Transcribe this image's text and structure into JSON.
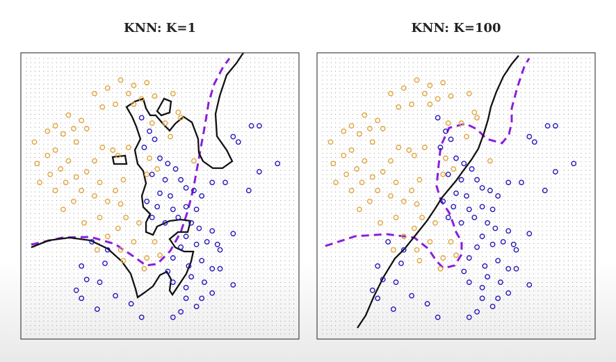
{
  "colors": {
    "orange": "#e0a43c",
    "blue": "#2517b8",
    "bayes": "#8a1fd8",
    "boundary": "#111111",
    "grid_dot": "#8a8a8a",
    "frame": "#444444"
  },
  "chart_data": [
    {
      "type": "scatter",
      "title": "KNN: K=1",
      "xlim": [
        0,
        1
      ],
      "ylim": [
        0,
        1
      ],
      "grid": "dotted",
      "series": [
        {
          "class": "orange",
          "points": [
            [
              0.35,
              0.93
            ],
            [
              0.4,
              0.91
            ],
            [
              0.45,
              0.92
            ],
            [
              0.3,
              0.9
            ],
            [
              0.25,
              0.88
            ],
            [
              0.38,
              0.88
            ],
            [
              0.43,
              0.86
            ],
            [
              0.48,
              0.87
            ],
            [
              0.55,
              0.88
            ],
            [
              0.4,
              0.84
            ],
            [
              0.33,
              0.84
            ],
            [
              0.28,
              0.83
            ],
            [
              0.15,
              0.8
            ],
            [
              0.2,
              0.78
            ],
            [
              0.1,
              0.76
            ],
            [
              0.17,
              0.75
            ],
            [
              0.22,
              0.75
            ],
            [
              0.07,
              0.74
            ],
            [
              0.13,
              0.73
            ],
            [
              0.02,
              0.7
            ],
            [
              0.18,
              0.7
            ],
            [
              0.28,
              0.68
            ],
            [
              0.32,
              0.67
            ],
            [
              0.38,
              0.68
            ],
            [
              0.34,
              0.65
            ],
            [
              0.1,
              0.67
            ],
            [
              0.07,
              0.65
            ],
            [
              0.15,
              0.63
            ],
            [
              0.25,
              0.63
            ],
            [
              0.12,
              0.6
            ],
            [
              0.08,
              0.58
            ],
            [
              0.03,
              0.62
            ],
            [
              0.18,
              0.57
            ],
            [
              0.22,
              0.59
            ],
            [
              0.27,
              0.55
            ],
            [
              0.14,
              0.55
            ],
            [
              0.04,
              0.55
            ],
            [
              0.2,
              0.52
            ],
            [
              0.1,
              0.52
            ],
            [
              0.25,
              0.5
            ],
            [
              0.3,
              0.48
            ],
            [
              0.17,
              0.48
            ],
            [
              0.13,
              0.45
            ],
            [
              0.36,
              0.56
            ],
            [
              0.33,
              0.52
            ],
            [
              0.35,
              0.47
            ],
            [
              0.37,
              0.42
            ],
            [
              0.27,
              0.42
            ],
            [
              0.21,
              0.4
            ],
            [
              0.34,
              0.38
            ],
            [
              0.42,
              0.4
            ],
            [
              0.3,
              0.35
            ],
            [
              0.26,
              0.3
            ],
            [
              0.35,
              0.3
            ],
            [
              0.4,
              0.33
            ],
            [
              0.36,
              0.26
            ],
            [
              0.45,
              0.27
            ],
            [
              0.47,
              0.77
            ],
            [
              0.54,
              0.72
            ],
            [
              0.52,
              0.77
            ],
            [
              0.57,
              0.81
            ],
            [
              0.63,
              0.63
            ],
            [
              0.49,
              0.6
            ],
            [
              0.58,
              0.79
            ],
            [
              0.48,
              0.33
            ],
            [
              0.44,
              0.23
            ],
            [
              0.5,
              0.28
            ],
            [
              0.46,
              0.64
            ],
            [
              0.45,
              0.58
            ]
          ]
        },
        {
          "class": "blue",
          "points": [
            [
              0.43,
              0.79
            ],
            [
              0.46,
              0.74
            ],
            [
              0.48,
              0.71
            ],
            [
              0.44,
              0.68
            ],
            [
              0.5,
              0.64
            ],
            [
              0.53,
              0.62
            ],
            [
              0.56,
              0.6
            ],
            [
              0.47,
              0.58
            ],
            [
              0.52,
              0.56
            ],
            [
              0.58,
              0.56
            ],
            [
              0.6,
              0.53
            ],
            [
              0.5,
              0.51
            ],
            [
              0.54,
              0.5
            ],
            [
              0.63,
              0.52
            ],
            [
              0.66,
              0.5
            ],
            [
              0.45,
              0.48
            ],
            [
              0.49,
              0.46
            ],
            [
              0.55,
              0.45
            ],
            [
              0.6,
              0.46
            ],
            [
              0.64,
              0.45
            ],
            [
              0.57,
              0.42
            ],
            [
              0.47,
              0.42
            ],
            [
              0.52,
              0.4
            ],
            [
              0.62,
              0.4
            ],
            [
              0.65,
              0.38
            ],
            [
              0.7,
              0.37
            ],
            [
              0.6,
              0.35
            ],
            [
              0.68,
              0.33
            ],
            [
              0.64,
              0.32
            ],
            [
              0.72,
              0.32
            ],
            [
              0.58,
              0.31
            ],
            [
              0.55,
              0.27
            ],
            [
              0.61,
              0.24
            ],
            [
              0.66,
              0.26
            ],
            [
              0.7,
              0.23
            ],
            [
              0.62,
              0.2
            ],
            [
              0.67,
              0.18
            ],
            [
              0.7,
              0.14
            ],
            [
              0.6,
              0.16
            ],
            [
              0.55,
              0.18
            ],
            [
              0.53,
              0.22
            ],
            [
              0.6,
              0.12
            ],
            [
              0.64,
              0.09
            ],
            [
              0.58,
              0.07
            ],
            [
              0.73,
              0.3
            ],
            [
              0.78,
              0.36
            ],
            [
              0.84,
              0.52
            ],
            [
              0.88,
              0.59
            ],
            [
              0.95,
              0.62
            ],
            [
              0.8,
              0.7
            ],
            [
              0.78,
              0.72
            ],
            [
              0.88,
              0.76
            ],
            [
              0.85,
              0.76
            ],
            [
              0.75,
              0.55
            ],
            [
              0.7,
              0.55
            ],
            [
              0.73,
              0.23
            ],
            [
              0.78,
              0.17
            ],
            [
              0.2,
              0.24
            ],
            [
              0.22,
              0.19
            ],
            [
              0.27,
              0.18
            ],
            [
              0.18,
              0.15
            ],
            [
              0.2,
              0.12
            ],
            [
              0.26,
              0.08
            ],
            [
              0.33,
              0.13
            ],
            [
              0.29,
              0.25
            ],
            [
              0.3,
              0.3
            ],
            [
              0.24,
              0.33
            ],
            [
              0.39,
              0.1
            ],
            [
              0.43,
              0.05
            ],
            [
              0.55,
              0.05
            ],
            [
              0.66,
              0.12
            ]
          ]
        }
      ]
    },
    {
      "type": "scatter",
      "title": "KNN: K=100",
      "xlim": [
        0,
        1
      ],
      "ylim": [
        0,
        1
      ],
      "grid": "dotted",
      "series": [
        {
          "class": "orange",
          "points": [
            [
              0.35,
              0.93
            ],
            [
              0.4,
              0.91
            ],
            [
              0.45,
              0.92
            ],
            [
              0.3,
              0.9
            ],
            [
              0.25,
              0.88
            ],
            [
              0.38,
              0.88
            ],
            [
              0.43,
              0.86
            ],
            [
              0.48,
              0.87
            ],
            [
              0.55,
              0.88
            ],
            [
              0.4,
              0.84
            ],
            [
              0.33,
              0.84
            ],
            [
              0.28,
              0.83
            ],
            [
              0.15,
              0.8
            ],
            [
              0.2,
              0.78
            ],
            [
              0.1,
              0.76
            ],
            [
              0.17,
              0.75
            ],
            [
              0.22,
              0.75
            ],
            [
              0.07,
              0.74
            ],
            [
              0.13,
              0.73
            ],
            [
              0.02,
              0.7
            ],
            [
              0.18,
              0.7
            ],
            [
              0.28,
              0.68
            ],
            [
              0.32,
              0.67
            ],
            [
              0.38,
              0.68
            ],
            [
              0.34,
              0.65
            ],
            [
              0.1,
              0.67
            ],
            [
              0.07,
              0.65
            ],
            [
              0.15,
              0.63
            ],
            [
              0.25,
              0.63
            ],
            [
              0.12,
              0.6
            ],
            [
              0.08,
              0.58
            ],
            [
              0.03,
              0.62
            ],
            [
              0.18,
              0.57
            ],
            [
              0.22,
              0.59
            ],
            [
              0.27,
              0.55
            ],
            [
              0.14,
              0.55
            ],
            [
              0.04,
              0.55
            ],
            [
              0.2,
              0.52
            ],
            [
              0.1,
              0.52
            ],
            [
              0.25,
              0.5
            ],
            [
              0.3,
              0.48
            ],
            [
              0.17,
              0.48
            ],
            [
              0.13,
              0.45
            ],
            [
              0.36,
              0.56
            ],
            [
              0.33,
              0.52
            ],
            [
              0.35,
              0.47
            ],
            [
              0.37,
              0.42
            ],
            [
              0.27,
              0.42
            ],
            [
              0.21,
              0.4
            ],
            [
              0.34,
              0.38
            ],
            [
              0.42,
              0.4
            ],
            [
              0.3,
              0.35
            ],
            [
              0.26,
              0.3
            ],
            [
              0.35,
              0.3
            ],
            [
              0.4,
              0.33
            ],
            [
              0.36,
              0.26
            ],
            [
              0.45,
              0.27
            ],
            [
              0.47,
              0.77
            ],
            [
              0.54,
              0.72
            ],
            [
              0.52,
              0.77
            ],
            [
              0.57,
              0.81
            ],
            [
              0.63,
              0.63
            ],
            [
              0.49,
              0.6
            ],
            [
              0.58,
              0.79
            ],
            [
              0.48,
              0.33
            ],
            [
              0.44,
              0.23
            ],
            [
              0.5,
              0.28
            ],
            [
              0.46,
              0.64
            ],
            [
              0.45,
              0.58
            ]
          ]
        },
        {
          "class": "blue",
          "points": [
            [
              0.43,
              0.79
            ],
            [
              0.46,
              0.74
            ],
            [
              0.48,
              0.71
            ],
            [
              0.44,
              0.68
            ],
            [
              0.5,
              0.64
            ],
            [
              0.53,
              0.62
            ],
            [
              0.56,
              0.6
            ],
            [
              0.47,
              0.58
            ],
            [
              0.52,
              0.56
            ],
            [
              0.58,
              0.56
            ],
            [
              0.6,
              0.53
            ],
            [
              0.5,
              0.51
            ],
            [
              0.54,
              0.5
            ],
            [
              0.63,
              0.52
            ],
            [
              0.66,
              0.5
            ],
            [
              0.45,
              0.48
            ],
            [
              0.49,
              0.46
            ],
            [
              0.55,
              0.45
            ],
            [
              0.6,
              0.46
            ],
            [
              0.64,
              0.45
            ],
            [
              0.57,
              0.42
            ],
            [
              0.47,
              0.42
            ],
            [
              0.52,
              0.4
            ],
            [
              0.62,
              0.4
            ],
            [
              0.65,
              0.38
            ],
            [
              0.7,
              0.37
            ],
            [
              0.6,
              0.35
            ],
            [
              0.68,
              0.33
            ],
            [
              0.64,
              0.32
            ],
            [
              0.72,
              0.32
            ],
            [
              0.58,
              0.31
            ],
            [
              0.55,
              0.27
            ],
            [
              0.61,
              0.24
            ],
            [
              0.66,
              0.26
            ],
            [
              0.7,
              0.23
            ],
            [
              0.62,
              0.2
            ],
            [
              0.67,
              0.18
            ],
            [
              0.7,
              0.14
            ],
            [
              0.6,
              0.16
            ],
            [
              0.55,
              0.18
            ],
            [
              0.53,
              0.22
            ],
            [
              0.6,
              0.12
            ],
            [
              0.64,
              0.09
            ],
            [
              0.58,
              0.07
            ],
            [
              0.73,
              0.3
            ],
            [
              0.78,
              0.36
            ],
            [
              0.84,
              0.52
            ],
            [
              0.88,
              0.59
            ],
            [
              0.95,
              0.62
            ],
            [
              0.8,
              0.7
            ],
            [
              0.78,
              0.72
            ],
            [
              0.88,
              0.76
            ],
            [
              0.85,
              0.76
            ],
            [
              0.75,
              0.55
            ],
            [
              0.7,
              0.55
            ],
            [
              0.73,
              0.23
            ],
            [
              0.78,
              0.17
            ],
            [
              0.2,
              0.24
            ],
            [
              0.22,
              0.19
            ],
            [
              0.27,
              0.18
            ],
            [
              0.18,
              0.15
            ],
            [
              0.2,
              0.12
            ],
            [
              0.26,
              0.08
            ],
            [
              0.33,
              0.13
            ],
            [
              0.29,
              0.25
            ],
            [
              0.3,
              0.3
            ],
            [
              0.24,
              0.33
            ],
            [
              0.39,
              0.1
            ],
            [
              0.43,
              0.05
            ],
            [
              0.55,
              0.05
            ],
            [
              0.66,
              0.12
            ]
          ]
        }
      ]
    }
  ]
}
